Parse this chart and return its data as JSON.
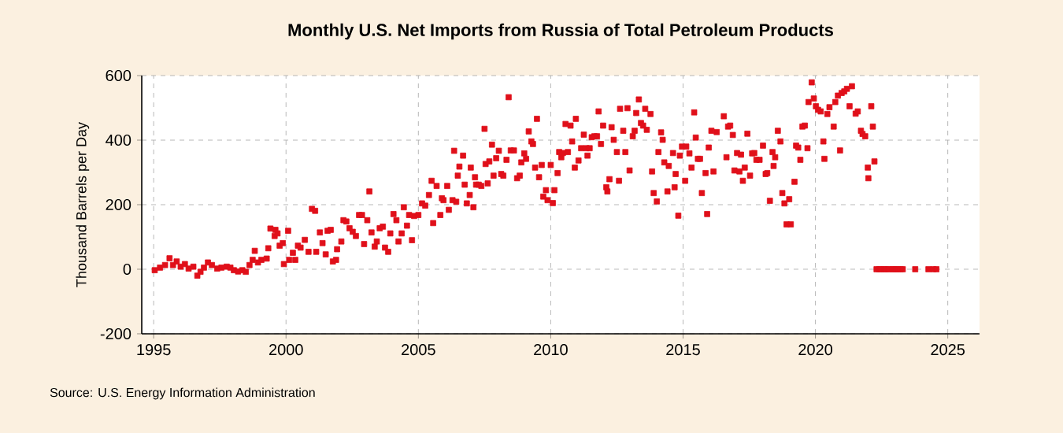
{
  "chart_data": {
    "type": "scatter",
    "title": "Monthly U.S. Net Imports from Russia of Total Petroleum Products",
    "ylabel": "Thousand Barrels per Day",
    "annotations": [
      "Source: U.S. Energy Information Administration"
    ],
    "marker": "square",
    "grid": true,
    "color": "#e0101a",
    "xlim": [
      1994.55,
      2026.2
    ],
    "ylim": [
      -200,
      600
    ],
    "xticks": [
      1995,
      2000,
      2005,
      2010,
      2015,
      2020,
      2025
    ],
    "yticks": [
      -200,
      0,
      200,
      400,
      600
    ],
    "x": [
      1995.04,
      1995.24,
      1995.43,
      1995.6,
      1995.73,
      1995.87,
      1996.02,
      1996.18,
      1996.32,
      1996.5,
      1996.65,
      1996.77,
      1996.9,
      1997.05,
      1997.2,
      1997.4,
      1997.56,
      1997.76,
      1997.9,
      1998.03,
      1998.19,
      1998.35,
      1998.48,
      1998.62,
      1998.74,
      1998.82,
      1998.94,
      1999.07,
      1999.27,
      1999.33,
      1999.41,
      1999.57,
      1999.6,
      1999.68,
      1999.76,
      1999.88,
      1999.92,
      2000.08,
      2000.12,
      2000.26,
      2000.35,
      2000.45,
      2000.55,
      2000.71,
      2000.85,
      2000.98,
      2001.1,
      2001.14,
      2001.28,
      2001.38,
      2001.5,
      2001.57,
      2001.69,
      2001.77,
      2001.89,
      2001.93,
      2002.09,
      2002.17,
      2002.28,
      2002.4,
      2002.52,
      2002.64,
      2002.76,
      2002.87,
      2002.95,
      2003.07,
      2003.15,
      2003.23,
      2003.35,
      2003.43,
      2003.54,
      2003.66,
      2003.74,
      2003.86,
      2003.94,
      2004.06,
      2004.17,
      2004.25,
      2004.37,
      2004.45,
      2004.57,
      2004.65,
      2004.76,
      2004.84,
      2005.0,
      2005.14,
      2005.26,
      2005.4,
      2005.5,
      2005.56,
      2005.69,
      2005.83,
      2005.89,
      2005.95,
      2006.09,
      2006.15,
      2006.29,
      2006.35,
      2006.43,
      2006.49,
      2006.55,
      2006.69,
      2006.75,
      2006.83,
      2006.94,
      2006.98,
      2007.08,
      2007.14,
      2007.18,
      2007.28,
      2007.38,
      2007.5,
      2007.54,
      2007.62,
      2007.68,
      2007.78,
      2007.84,
      2007.94,
      2008.04,
      2008.13,
      2008.21,
      2008.33,
      2008.41,
      2008.49,
      2008.61,
      2008.73,
      2008.83,
      2008.89,
      2009.0,
      2009.07,
      2009.17,
      2009.27,
      2009.33,
      2009.41,
      2009.48,
      2009.56,
      2009.66,
      2009.72,
      2009.82,
      2009.88,
      2010.0,
      2010.08,
      2010.14,
      2010.26,
      2010.32,
      2010.4,
      2010.46,
      2010.56,
      2010.65,
      2010.75,
      2010.81,
      2010.91,
      2010.95,
      2011.05,
      2011.15,
      2011.25,
      2011.35,
      2011.39,
      2011.47,
      2011.55,
      2011.65,
      2011.75,
      2011.81,
      2011.9,
      2011.98,
      2012.1,
      2012.14,
      2012.22,
      2012.3,
      2012.38,
      2012.5,
      2012.58,
      2012.62,
      2012.74,
      2012.82,
      2012.9,
      2012.98,
      2013.1,
      2013.17,
      2013.23,
      2013.33,
      2013.41,
      2013.49,
      2013.57,
      2013.63,
      2013.77,
      2013.83,
      2013.89,
      2014.01,
      2014.07,
      2014.17,
      2014.23,
      2014.29,
      2014.41,
      2014.46,
      2014.62,
      2014.68,
      2014.72,
      2014.82,
      2014.88,
      2014.96,
      2015.08,
      2015.12,
      2015.24,
      2015.32,
      2015.42,
      2015.48,
      2015.56,
      2015.64,
      2015.71,
      2015.85,
      2015.91,
      2015.97,
      2016.07,
      2016.15,
      2016.27,
      2016.54,
      2016.64,
      2016.7,
      2016.78,
      2016.88,
      2016.94,
      2017.04,
      2017.13,
      2017.19,
      2017.26,
      2017.33,
      2017.43,
      2017.53,
      2017.61,
      2017.69,
      2017.77,
      2017.89,
      2018.02,
      2018.12,
      2018.18,
      2018.28,
      2018.38,
      2018.42,
      2018.48,
      2018.58,
      2018.68,
      2018.75,
      2018.83,
      2018.91,
      2019.01,
      2019.07,
      2019.21,
      2019.27,
      2019.35,
      2019.43,
      2019.51,
      2019.6,
      2019.7,
      2019.74,
      2019.86,
      2019.94,
      2020.02,
      2020.1,
      2020.2,
      2020.3,
      2020.34,
      2020.45,
      2020.53,
      2020.69,
      2020.75,
      2020.85,
      2020.93,
      2020.99,
      2021.09,
      2021.19,
      2021.29,
      2021.38,
      2021.52,
      2021.6,
      2021.72,
      2021.78,
      2021.88,
      2021.98,
      2022.0,
      2022.11,
      2022.17,
      2022.23,
      2022.31,
      2022.41,
      2022.47,
      2022.6,
      2022.67,
      2022.75,
      2022.9,
      2022.96,
      2023.04,
      2023.12,
      2023.22,
      2023.3,
      2023.77,
      2024.27,
      2024.46,
      2024.57
    ],
    "values": [
      -3,
      5,
      13,
      34,
      13,
      24,
      8,
      16,
      2,
      8,
      -20,
      -8,
      5,
      21,
      13,
      2,
      5,
      8,
      5,
      -3,
      -7,
      -3,
      -8,
      13,
      29,
      57,
      21,
      29,
      33,
      65,
      126,
      103,
      122,
      111,
      73,
      81,
      16,
      119,
      29,
      51,
      29,
      73,
      67,
      91,
      54,
      187,
      181,
      54,
      114,
      81,
      46,
      119,
      122,
      24,
      29,
      62,
      86,
      152,
      148,
      127,
      116,
      103,
      168,
      168,
      78,
      152,
      241,
      114,
      70,
      86,
      127,
      132,
      67,
      54,
      111,
      171,
      152,
      86,
      111,
      192,
      135,
      168,
      90,
      165,
      168,
      204,
      197,
      230,
      274,
      143,
      258,
      168,
      220,
      214,
      258,
      184,
      214,
      367,
      209,
      290,
      318,
      352,
      262,
      204,
      230,
      315,
      192,
      285,
      262,
      262,
      258,
      435,
      326,
      266,
      334,
      386,
      290,
      344,
      367,
      295,
      290,
      339,
      533,
      368,
      368,
      282,
      290,
      331,
      359,
      342,
      427,
      396,
      388,
      315,
      466,
      285,
      323,
      225,
      245,
      214,
      323,
      205,
      245,
      298,
      363,
      347,
      360,
      450,
      363,
      445,
      396,
      315,
      466,
      337,
      375,
      417,
      375,
      352,
      375,
      409,
      412,
      412,
      489,
      388,
      445,
      254,
      241,
      279,
      440,
      401,
      363,
      274,
      497,
      429,
      363,
      499,
      306,
      412,
      429,
      484,
      526,
      453,
      445,
      497,
      432,
      481,
      303,
      236,
      210,
      363,
      424,
      401,
      331,
      241,
      320,
      360,
      254,
      295,
      166,
      352,
      380,
      274,
      380,
      359,
      315,
      486,
      408,
      342,
      342,
      236,
      298,
      171,
      377,
      429,
      303,
      425,
      474,
      347,
      442,
      445,
      416,
      306,
      360,
      303,
      355,
      274,
      315,
      420,
      290,
      359,
      360,
      339,
      339,
      383,
      295,
      298,
      212,
      363,
      320,
      347,
      429,
      396,
      236,
      204,
      139,
      217,
      139,
      271,
      383,
      377,
      339,
      442,
      445,
      375,
      518,
      579,
      529,
      505,
      494,
      489,
      396,
      342,
      481,
      502,
      442,
      518,
      538,
      368,
      546,
      551,
      559,
      505,
      567,
      482,
      489,
      429,
      419,
      412,
      315,
      282,
      505,
      442,
      334,
      0,
      0,
      0,
      0,
      0,
      0,
      0,
      0,
      0,
      0,
      0,
      0,
      0,
      0,
      0,
      0
    ]
  }
}
